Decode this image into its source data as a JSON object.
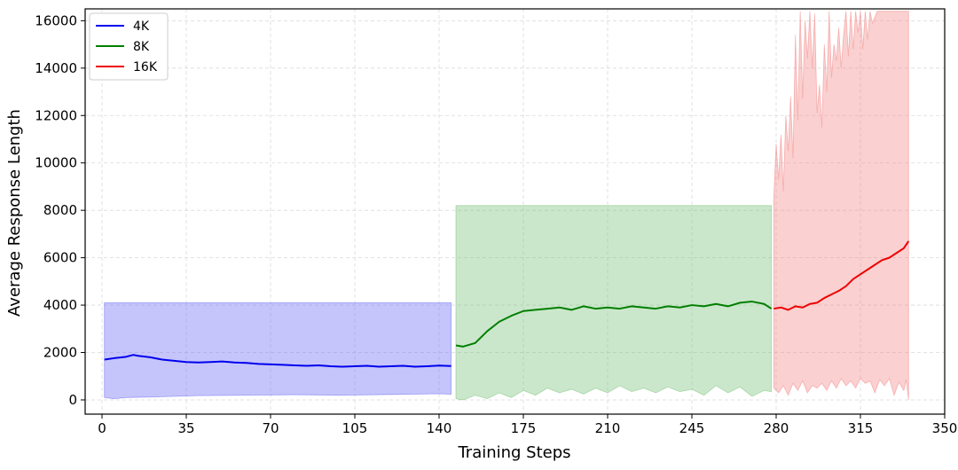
{
  "chart_data": {
    "type": "line",
    "title": "",
    "xlabel": "Training Steps",
    "ylabel": "Average Response Length",
    "xlim": [
      -7,
      350
    ],
    "ylim": [
      -600,
      16500
    ],
    "xticks": [
      0,
      35,
      70,
      105,
      140,
      175,
      210,
      245,
      280,
      315,
      350
    ],
    "yticks": [
      0,
      2000,
      4000,
      6000,
      8000,
      10000,
      12000,
      14000,
      16000
    ],
    "grid": true,
    "legend_position": "top-left",
    "series": [
      {
        "name": "4K",
        "color": "#0000ee",
        "band_color": "#6e6ef5",
        "x": [
          1,
          5,
          10,
          13,
          15,
          20,
          25,
          30,
          35,
          40,
          45,
          50,
          55,
          60,
          65,
          70,
          75,
          80,
          85,
          90,
          95,
          100,
          105,
          110,
          115,
          120,
          125,
          130,
          135,
          140,
          145
        ],
        "y": [
          1700,
          1760,
          1820,
          1900,
          1860,
          1800,
          1700,
          1650,
          1600,
          1580,
          1600,
          1620,
          1580,
          1560,
          1520,
          1500,
          1480,
          1460,
          1440,
          1460,
          1420,
          1400,
          1420,
          1440,
          1400,
          1420,
          1440,
          1400,
          1420,
          1450,
          1430
        ],
        "band_upper": [
          [
            1,
            4100
          ],
          [
            145,
            4100
          ]
        ],
        "band_lower": [
          [
            1,
            100
          ],
          [
            5,
            50
          ],
          [
            10,
            100
          ],
          [
            20,
            120
          ],
          [
            40,
            180
          ],
          [
            60,
            200
          ],
          [
            80,
            220
          ],
          [
            100,
            200
          ],
          [
            120,
            230
          ],
          [
            140,
            260
          ],
          [
            145,
            240
          ]
        ]
      },
      {
        "name": "8K",
        "color": "#007f00",
        "band_color": "#7cc47c",
        "x": [
          147,
          150,
          155,
          160,
          165,
          170,
          175,
          180,
          185,
          190,
          195,
          200,
          205,
          210,
          215,
          220,
          225,
          230,
          235,
          240,
          245,
          250,
          255,
          260,
          265,
          270,
          275,
          278
        ],
        "y": [
          2300,
          2250,
          2400,
          2900,
          3300,
          3550,
          3750,
          3800,
          3850,
          3900,
          3800,
          3950,
          3850,
          3900,
          3850,
          3950,
          3900,
          3850,
          3950,
          3900,
          4000,
          3950,
          4050,
          3950,
          4100,
          4150,
          4050,
          3850
        ],
        "band_upper": [
          [
            147,
            8200
          ],
          [
            278,
            8200
          ]
        ],
        "band_lower": [
          [
            147,
            50
          ],
          [
            150,
            0
          ],
          [
            155,
            200
          ],
          [
            160,
            50
          ],
          [
            165,
            300
          ],
          [
            170,
            100
          ],
          [
            175,
            400
          ],
          [
            180,
            200
          ],
          [
            185,
            500
          ],
          [
            190,
            300
          ],
          [
            195,
            450
          ],
          [
            200,
            250
          ],
          [
            205,
            500
          ],
          [
            210,
            300
          ],
          [
            215,
            600
          ],
          [
            220,
            350
          ],
          [
            225,
            500
          ],
          [
            230,
            300
          ],
          [
            235,
            550
          ],
          [
            240,
            350
          ],
          [
            245,
            450
          ],
          [
            250,
            200
          ],
          [
            255,
            600
          ],
          [
            260,
            300
          ],
          [
            265,
            550
          ],
          [
            270,
            150
          ],
          [
            275,
            400
          ],
          [
            278,
            350
          ]
        ]
      },
      {
        "name": "16K",
        "color": "#ee0000",
        "band_color": "#f38a8a",
        "x": [
          279,
          282,
          285,
          288,
          291,
          294,
          297,
          300,
          303,
          306,
          309,
          312,
          315,
          318,
          321,
          324,
          327,
          330,
          333,
          335
        ],
        "y": [
          3850,
          3900,
          3800,
          3950,
          3900,
          4050,
          4100,
          4300,
          4450,
          4600,
          4800,
          5100,
          5300,
          5500,
          5700,
          5900,
          6000,
          6200,
          6400,
          6700
        ],
        "band_upper": [
          [
            279,
            8500
          ],
          [
            280,
            10800
          ],
          [
            281,
            9300
          ],
          [
            282,
            11200
          ],
          [
            283,
            8800
          ],
          [
            284,
            12000
          ],
          [
            285,
            10500
          ],
          [
            286,
            12800
          ],
          [
            287,
            10200
          ],
          [
            288,
            15400
          ],
          [
            289,
            11800
          ],
          [
            290,
            16400
          ],
          [
            291,
            12700
          ],
          [
            292,
            16000
          ],
          [
            293,
            14400
          ],
          [
            294,
            16400
          ],
          [
            295,
            14000
          ],
          [
            296,
            16300
          ],
          [
            297,
            12100
          ],
          [
            298,
            13300
          ],
          [
            299,
            11500
          ],
          [
            300,
            15000
          ],
          [
            301,
            13000
          ],
          [
            302,
            16400
          ],
          [
            303,
            13600
          ],
          [
            304,
            15000
          ],
          [
            305,
            14300
          ],
          [
            306,
            15700
          ],
          [
            307,
            14000
          ],
          [
            308,
            15400
          ],
          [
            309,
            16400
          ],
          [
            310,
            14500
          ],
          [
            311,
            16400
          ],
          [
            312,
            14800
          ],
          [
            313,
            16400
          ],
          [
            314,
            15500
          ],
          [
            315,
            16400
          ],
          [
            316,
            14800
          ],
          [
            317,
            16400
          ],
          [
            318,
            15200
          ],
          [
            319,
            16400
          ],
          [
            320,
            15900
          ],
          [
            322,
            16400
          ],
          [
            335,
            16400
          ]
        ],
        "band_lower": [
          [
            279,
            500
          ],
          [
            281,
            300
          ],
          [
            283,
            600
          ],
          [
            285,
            200
          ],
          [
            287,
            700
          ],
          [
            289,
            400
          ],
          [
            291,
            800
          ],
          [
            293,
            300
          ],
          [
            295,
            600
          ],
          [
            297,
            500
          ],
          [
            299,
            700
          ],
          [
            301,
            400
          ],
          [
            303,
            800
          ],
          [
            305,
            500
          ],
          [
            307,
            900
          ],
          [
            309,
            600
          ],
          [
            311,
            800
          ],
          [
            313,
            500
          ],
          [
            315,
            900
          ],
          [
            317,
            700
          ],
          [
            319,
            800
          ],
          [
            321,
            300
          ],
          [
            323,
            850
          ],
          [
            325,
            600
          ],
          [
            327,
            900
          ],
          [
            329,
            200
          ],
          [
            331,
            750
          ],
          [
            333,
            400
          ],
          [
            334,
            850
          ],
          [
            335,
            0
          ]
        ]
      }
    ]
  }
}
